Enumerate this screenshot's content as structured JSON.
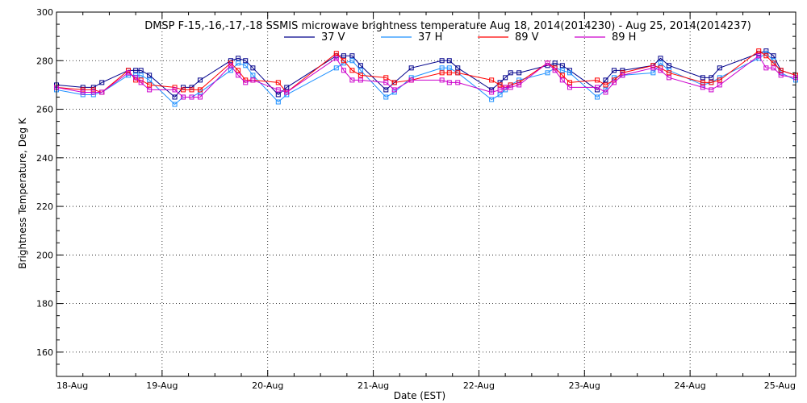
{
  "chart_data": {
    "type": "line",
    "title": "DMSP F-15,-16,-17,-18 SSMIS microwave brightness temperature Aug 18, 2014(2014230) - Aug 25, 2014(2014237)",
    "xlabel": "Date (EST)",
    "ylabel": "Brightness Temperature, Deg K",
    "xlim": [
      0,
      7
    ],
    "ylim": [
      150,
      300
    ],
    "x_ticks": [
      {
        "value": 0,
        "label": "18-Aug"
      },
      {
        "value": 1,
        "label": "19-Aug"
      },
      {
        "value": 2,
        "label": "20-Aug"
      },
      {
        "value": 3,
        "label": "21-Aug"
      },
      {
        "value": 4,
        "label": "22-Aug"
      },
      {
        "value": 5,
        "label": "23-Aug"
      },
      {
        "value": 6,
        "label": "24-Aug"
      },
      {
        "value": 7,
        "label": "25-Aug"
      }
    ],
    "y_ticks": [
      160,
      180,
      200,
      220,
      240,
      260,
      280,
      300
    ],
    "grid": true,
    "legend_position": "top-center",
    "x": [
      0.0,
      0.25,
      0.35,
      0.43,
      0.68,
      0.75,
      0.8,
      0.88,
      1.12,
      1.2,
      1.28,
      1.36,
      1.65,
      1.72,
      1.79,
      1.86,
      2.1,
      2.18,
      2.65,
      2.72,
      2.8,
      2.88,
      3.12,
      3.2,
      3.36,
      3.65,
      3.72,
      3.8,
      4.12,
      4.2,
      4.25,
      4.3,
      4.38,
      4.65,
      4.72,
      4.79,
      4.86,
      5.12,
      5.2,
      5.28,
      5.36,
      5.65,
      5.72,
      5.8,
      6.12,
      6.2,
      6.28,
      6.65,
      6.72,
      6.79,
      6.86,
      7.0
    ],
    "series": [
      {
        "name": "37 V",
        "color": "#00008b",
        "values": [
          270,
          269,
          269,
          271,
          276,
          276,
          276,
          274,
          265,
          269,
          269,
          272,
          280,
          281,
          280,
          277,
          266,
          269,
          282,
          282,
          282,
          278,
          268,
          271,
          277,
          280,
          280,
          277,
          268,
          271,
          273,
          275,
          275,
          278,
          279,
          278,
          276,
          268,
          272,
          276,
          276,
          278,
          281,
          278,
          273,
          273,
          277,
          283,
          284,
          282,
          276,
          274
        ]
      },
      {
        "name": "37 H",
        "color": "#1e90ff",
        "values": [
          268,
          266,
          266,
          267,
          274,
          274,
          274,
          272,
          262,
          265,
          265,
          267,
          276,
          279,
          278,
          274,
          263,
          266,
          277,
          279,
          280,
          276,
          265,
          267,
          273,
          277,
          277,
          275,
          264,
          266,
          268,
          270,
          272,
          275,
          277,
          276,
          275,
          265,
          268,
          273,
          274,
          275,
          279,
          276,
          270,
          271,
          273,
          281,
          283,
          280,
          275,
          272
        ]
      },
      {
        "name": "89 V",
        "color": "#ff0000",
        "values": [
          269,
          268,
          268,
          267,
          276,
          272,
          272,
          270,
          269,
          268,
          268,
          268,
          279,
          276,
          272,
          272,
          271,
          267,
          283,
          280,
          276,
          274,
          273,
          271,
          272,
          275,
          275,
          275,
          272,
          270,
          269,
          270,
          271,
          279,
          277,
          274,
          271,
          272,
          270,
          272,
          275,
          278,
          277,
          275,
          271,
          271,
          272,
          284,
          282,
          279,
          276,
          274
        ]
      },
      {
        "name": "89 H",
        "color": "#cc00cc",
        "values": [
          269,
          267,
          267,
          267,
          275,
          273,
          271,
          268,
          268,
          265,
          265,
          265,
          278,
          274,
          271,
          272,
          268,
          267,
          281,
          276,
          272,
          272,
          271,
          268,
          272,
          272,
          271,
          271,
          267,
          268,
          269,
          269,
          270,
          279,
          276,
          272,
          269,
          269,
          267,
          271,
          274,
          277,
          276,
          273,
          269,
          268,
          270,
          282,
          277,
          277,
          274,
          273
        ]
      }
    ]
  }
}
